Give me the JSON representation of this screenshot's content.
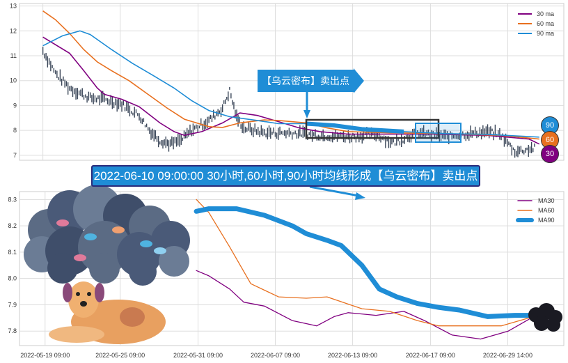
{
  "chart_data": [
    {
      "type": "line",
      "title": "",
      "ylim": [
        6.8,
        13.1
      ],
      "xlim": [
        0,
        100
      ],
      "yticks": [
        "13",
        "12",
        "11",
        "10",
        "9",
        "8",
        "7"
      ],
      "ytick_values": [
        13,
        12,
        11,
        10,
        9,
        8,
        7
      ],
      "xgrid": [
        4.3,
        18.5,
        32.8,
        47,
        61.2,
        75.5,
        89.7
      ],
      "legend": {
        "placement": "top-right",
        "entries": [
          "30 ma",
          "60 ma",
          "90 ma"
        ]
      },
      "price": [
        [
          4.3,
          11.2
        ],
        [
          6.6,
          10.3
        ],
        [
          9.2,
          9.7
        ],
        [
          13,
          9.3
        ],
        [
          15.6,
          9.25
        ],
        [
          18.8,
          9.05
        ],
        [
          22,
          8.6
        ],
        [
          23.9,
          8.0
        ],
        [
          25.8,
          7.6
        ],
        [
          27.7,
          7.45
        ],
        [
          29.7,
          7.6
        ],
        [
          31.6,
          8.0
        ],
        [
          34.8,
          8.4
        ],
        [
          37.3,
          8.9
        ],
        [
          38.6,
          9.6
        ],
        [
          39.9,
          8.5
        ],
        [
          41.2,
          8.1
        ],
        [
          45,
          7.9
        ],
        [
          50.1,
          7.9
        ],
        [
          55.2,
          7.8
        ],
        [
          60.4,
          7.75
        ],
        [
          65.5,
          7.85
        ],
        [
          68.7,
          7.5
        ],
        [
          73.1,
          7.9
        ],
        [
          78.3,
          7.75
        ],
        [
          86,
          7.95
        ],
        [
          88.5,
          7.8
        ],
        [
          91,
          7.15
        ],
        [
          94.9,
          7.3
        ]
      ],
      "series": [
        {
          "name": "30 ma",
          "color": "#800080",
          "points": [
            [
              4.3,
              11.75
            ],
            [
              9.2,
              11.1
            ],
            [
              11.8,
              10.4
            ],
            [
              14.3,
              9.7
            ],
            [
              15.6,
              9.45
            ],
            [
              18.8,
              9.25
            ],
            [
              22,
              8.95
            ],
            [
              25.8,
              8.3
            ],
            [
              28.4,
              7.95
            ],
            [
              30.3,
              7.8
            ],
            [
              33.5,
              7.95
            ],
            [
              37.3,
              8.3
            ],
            [
              40.5,
              8.7
            ],
            [
              43.7,
              8.6
            ],
            [
              47.6,
              8.35
            ],
            [
              51.4,
              8.1
            ],
            [
              55.2,
              7.95
            ],
            [
              60.4,
              7.85
            ],
            [
              68,
              7.85
            ],
            [
              75.7,
              7.85
            ],
            [
              86,
              7.8
            ],
            [
              93.6,
              7.65
            ],
            [
              95.5,
              7.45
            ]
          ]
        },
        {
          "name": "60 ma",
          "color": "#e8701f",
          "points": [
            [
              4.3,
              12.8
            ],
            [
              6.6,
              12.45
            ],
            [
              9.2,
              11.9
            ],
            [
              11.8,
              11.25
            ],
            [
              14.3,
              10.75
            ],
            [
              16.9,
              10.4
            ],
            [
              20.1,
              10.0
            ],
            [
              23.3,
              9.5
            ],
            [
              27.1,
              8.9
            ],
            [
              30.3,
              8.45
            ],
            [
              34.8,
              8.15
            ],
            [
              37.3,
              8.12
            ],
            [
              40.5,
              8.3
            ],
            [
              45,
              8.42
            ],
            [
              47.6,
              8.4
            ],
            [
              52.7,
              8.3
            ],
            [
              56.5,
              8.1
            ],
            [
              60.4,
              7.95
            ],
            [
              68,
              7.9
            ],
            [
              75.7,
              7.88
            ],
            [
              88.5,
              7.8
            ],
            [
              95.5,
              7.65
            ]
          ]
        },
        {
          "name": "90 ma",
          "color": "#1f8dd6",
          "points": [
            [
              4.3,
              11.4
            ],
            [
              7.9,
              11.8
            ],
            [
              11.1,
              12.0
            ],
            [
              13,
              11.85
            ],
            [
              16.9,
              11.25
            ],
            [
              20.7,
              10.7
            ],
            [
              24.6,
              10.2
            ],
            [
              28.4,
              9.7
            ],
            [
              31.6,
              9.2
            ],
            [
              34.8,
              8.8
            ],
            [
              38.6,
              8.55
            ],
            [
              43.7,
              8.4
            ],
            [
              47.6,
              8.27
            ],
            [
              52.7,
              8.27
            ],
            [
              57.8,
              8.2
            ],
            [
              62.9,
              8.05
            ],
            [
              70.6,
              7.95
            ],
            [
              78.3,
              7.87
            ],
            [
              86,
              7.84
            ],
            [
              95.5,
              7.73
            ]
          ]
        }
      ],
      "highlight_range": [
        52.7,
        77
      ],
      "end_badges": [
        "90",
        "60",
        "30"
      ]
    },
    {
      "type": "line",
      "ylim": [
        7.745,
        8.33
      ],
      "xlim": [
        0,
        100
      ],
      "yticks": [
        "8.3",
        "8.2",
        "8.1",
        "8.0",
        "7.9",
        "7.8"
      ],
      "ytick_values": [
        8.3,
        8.2,
        8.1,
        8.0,
        7.9,
        7.8
      ],
      "xtick_labels": [
        "2022-05-19 09:00",
        "2022-05-25 09:00",
        "2022-05-31 09:00",
        "2022-06-07 09:00",
        "2022-06-13 09:00",
        "2022-06-17 09:00",
        "2022-06-29 14:00"
      ],
      "xtick_values": [
        4.7,
        18.5,
        32.8,
        47,
        61.2,
        75.5,
        89.7
      ],
      "legend": {
        "placement": "top-right",
        "entries": [
          "MA30",
          "MA60",
          "MA90"
        ]
      },
      "series": [
        {
          "name": "MA30",
          "color": "#800080",
          "width": 1.3,
          "points": [
            [
              32.5,
              8.03
            ],
            [
              34.8,
              8.01
            ],
            [
              38.6,
              7.96
            ],
            [
              41.2,
              7.91
            ],
            [
              45,
              7.895
            ],
            [
              50.1,
              7.84
            ],
            [
              54.6,
              7.82
            ],
            [
              57.8,
              7.855
            ],
            [
              60.4,
              7.87
            ],
            [
              65.5,
              7.86
            ],
            [
              70.6,
              7.875
            ],
            [
              74.4,
              7.84
            ],
            [
              79.5,
              7.785
            ],
            [
              84.7,
              7.77
            ],
            [
              89.8,
              7.8
            ],
            [
              93.6,
              7.845
            ]
          ]
        },
        {
          "name": "MA60",
          "color": "#e8701f",
          "width": 1.3,
          "points": [
            [
              32.5,
              8.3
            ],
            [
              34.8,
              8.25
            ],
            [
              38.6,
              8.12
            ],
            [
              42.5,
              7.98
            ],
            [
              47.6,
              7.93
            ],
            [
              52.7,
              7.925
            ],
            [
              56.5,
              7.93
            ],
            [
              62.9,
              7.885
            ],
            [
              68,
              7.875
            ],
            [
              73.1,
              7.84
            ],
            [
              77,
              7.82
            ],
            [
              83.4,
              7.82
            ],
            [
              88.5,
              7.82
            ],
            [
              93.6,
              7.85
            ]
          ]
        },
        {
          "name": "MA90",
          "color": "#1f8dd6",
          "width": 7,
          "points": [
            [
              32.5,
              8.255
            ],
            [
              34.8,
              8.265
            ],
            [
              39.9,
              8.265
            ],
            [
              45,
              8.24
            ],
            [
              50.1,
              8.2
            ],
            [
              52.7,
              8.17
            ],
            [
              56.5,
              8.145
            ],
            [
              59.1,
              8.125
            ],
            [
              62.9,
              8.05
            ],
            [
              66.1,
              7.96
            ],
            [
              69.3,
              7.93
            ],
            [
              73.1,
              7.905
            ],
            [
              77,
              7.89
            ],
            [
              80.8,
              7.88
            ],
            [
              86,
              7.855
            ],
            [
              91,
              7.86
            ],
            [
              94.9,
              7.86
            ]
          ]
        }
      ]
    }
  ],
  "annotations": {
    "top_banner": "【乌云密布】卖出点",
    "bottom_banner": "2022-06-10 09:00:00 30小时,60小时,90小时均线形成【乌云密布】卖出点"
  }
}
